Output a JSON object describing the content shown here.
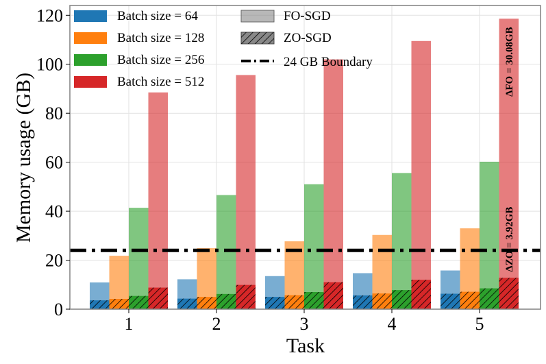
{
  "chart_data": {
    "type": "bar",
    "xlabel": "Task",
    "ylabel": "Memory usage (GB)",
    "ylim": [
      0,
      124
    ],
    "yticks": [
      0,
      20,
      40,
      60,
      80,
      100,
      120
    ],
    "categories": [
      "1",
      "2",
      "3",
      "4",
      "5"
    ],
    "grid": true,
    "series": [
      {
        "name": "Batch size = 64",
        "color": "#1f77b4",
        "fo_values": [
          10.9,
          12.2,
          13.5,
          14.7,
          15.8
        ],
        "zo_values": [
          3.6,
          4.3,
          5.0,
          5.6,
          6.3
        ]
      },
      {
        "name": "Batch size = 128",
        "color": "#ff7f0e",
        "fo_values": [
          21.8,
          24.9,
          27.7,
          30.3,
          33.0
        ],
        "zo_values": [
          4.2,
          5.0,
          5.7,
          6.4,
          7.1
        ]
      },
      {
        "name": "Batch size = 256",
        "color": "#2ca02c",
        "fo_values": [
          41.4,
          46.6,
          51.0,
          55.6,
          60.2
        ],
        "zo_values": [
          5.4,
          6.2,
          7.0,
          7.8,
          8.5
        ]
      },
      {
        "name": "Batch size = 512",
        "color": "#d62728",
        "fo_values": [
          88.5,
          95.6,
          102.0,
          109.5,
          118.6
        ],
        "zo_values": [
          8.8,
          9.9,
          11.0,
          12.0,
          12.8
        ]
      }
    ],
    "methods": [
      "FO-SGD",
      "ZO-SGD"
    ],
    "boundary": {
      "label": "24 GB Boundary",
      "value": 24
    },
    "annotations": [
      {
        "text": "ΔFO = 30.08GB",
        "value_top": 118,
        "value_bottom": 84
      },
      {
        "text": "ΔZO = 3.92GB",
        "value_top": 43,
        "value_bottom": 14
      }
    ],
    "legend_position": "upper-left"
  }
}
